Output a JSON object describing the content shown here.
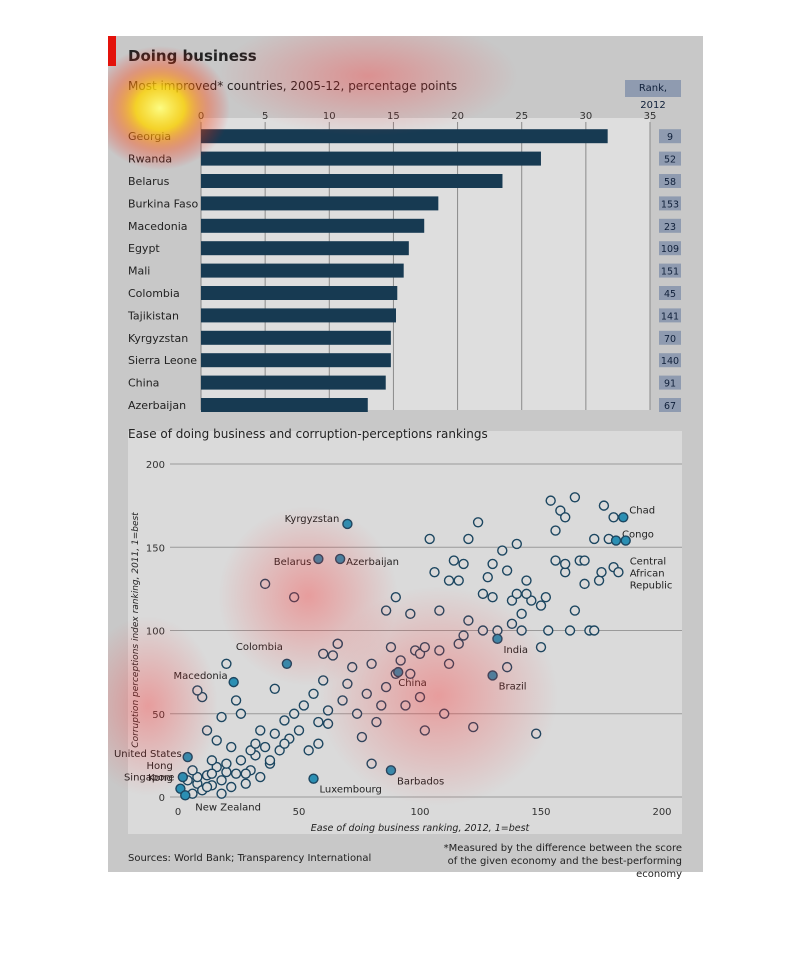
{
  "header": {
    "title": "Doing business",
    "bar_subtitle": "Most improved* countries, 2005-12, percentage points",
    "rank_header": "Rank, 2012"
  },
  "colors": {
    "accent": "#e3120b",
    "bar": "#173a52",
    "rank_box": "#8f9bb0",
    "point_highlight": "#2b8fb3",
    "point_plain_stroke": "#1c4660"
  },
  "chart_data": [
    {
      "type": "bar",
      "orientation": "horizontal",
      "title": "Most improved* countries, 2005-12, percentage points",
      "categories": [
        "Georgia",
        "Rwanda",
        "Belarus",
        "Burkina Faso",
        "Macedonia",
        "Egypt",
        "Mali",
        "Colombia",
        "Tajikistan",
        "Kyrgyzstan",
        "Sierra Leone",
        "China",
        "Azerbaijan"
      ],
      "values": [
        31.7,
        26.5,
        23.5,
        18.5,
        17.4,
        16.2,
        15.8,
        15.3,
        15.2,
        14.8,
        14.8,
        14.4,
        13.0
      ],
      "ranks_2012": [
        "9",
        "52",
        "58",
        "153",
        "23",
        "109",
        "151",
        "45",
        "141",
        "70",
        "140",
        "91",
        "67"
      ],
      "xlim": [
        0,
        35
      ],
      "xticks": [
        "0",
        "5",
        "10",
        "15",
        "20",
        "25",
        "30",
        "35"
      ],
      "grid": true
    },
    {
      "type": "scatter",
      "title": "Ease of doing business and corruption-perceptions rankings",
      "xlabel": "Ease of doing business ranking, 2012, 1=best",
      "ylabel": "Corruption perceptions index ranking, 2011, 1=best",
      "xlim": [
        0,
        200
      ],
      "ylim": [
        0,
        200
      ],
      "xticks": [
        "0",
        "50",
        "100",
        "150",
        "200"
      ],
      "yticks": [
        "0",
        "50",
        "100",
        "150",
        "200"
      ],
      "grid": true,
      "highlighted": [
        {
          "label": "Kyrgyzstan",
          "x": 70,
          "y": 164
        },
        {
          "label": "Belarus",
          "x": 58,
          "y": 143
        },
        {
          "label": "Azerbaijan",
          "x": 67,
          "y": 143
        },
        {
          "label": "Chad",
          "x": 184,
          "y": 168
        },
        {
          "label": "Congo",
          "x": 181,
          "y": 154
        },
        {
          "label": "Central African Republic",
          "x": 185,
          "y": 154
        },
        {
          "label": "Colombia",
          "x": 45,
          "y": 80
        },
        {
          "label": "Macedonia",
          "x": 23,
          "y": 69
        },
        {
          "label": "India",
          "x": 132,
          "y": 95
        },
        {
          "label": "China",
          "x": 91,
          "y": 75
        },
        {
          "label": "Brazil",
          "x": 130,
          "y": 73
        },
        {
          "label": "United States",
          "x": 4,
          "y": 24
        },
        {
          "label": "Hong Kong",
          "x": 2,
          "y": 12
        },
        {
          "label": "Singapore",
          "x": 1,
          "y": 5
        },
        {
          "label": "New Zealand",
          "x": 3,
          "y": 1
        },
        {
          "label": "Luxembourg",
          "x": 56,
          "y": 11
        },
        {
          "label": "Barbados",
          "x": 88,
          "y": 16
        }
      ],
      "others": [
        [
          6,
          2
        ],
        [
          8,
          8
        ],
        [
          10,
          4
        ],
        [
          12,
          13
        ],
        [
          14,
          7
        ],
        [
          16,
          18
        ],
        [
          18,
          10
        ],
        [
          20,
          15
        ],
        [
          22,
          6
        ],
        [
          24,
          14
        ],
        [
          26,
          22
        ],
        [
          28,
          8
        ],
        [
          30,
          16
        ],
        [
          32,
          25
        ],
        [
          34,
          12
        ],
        [
          36,
          30
        ],
        [
          38,
          20
        ],
        [
          40,
          38
        ],
        [
          42,
          28
        ],
        [
          44,
          46
        ],
        [
          46,
          35
        ],
        [
          48,
          50
        ],
        [
          50,
          40
        ],
        [
          52,
          55
        ],
        [
          54,
          28
        ],
        [
          56,
          62
        ],
        [
          58,
          45
        ],
        [
          60,
          70
        ],
        [
          62,
          52
        ],
        [
          64,
          85
        ],
        [
          66,
          92
        ],
        [
          68,
          58
        ],
        [
          70,
          68
        ],
        [
          72,
          78
        ],
        [
          74,
          50
        ],
        [
          76,
          36
        ],
        [
          78,
          62
        ],
        [
          80,
          80
        ],
        [
          82,
          45
        ],
        [
          84,
          55
        ],
        [
          86,
          66
        ],
        [
          88,
          90
        ],
        [
          90,
          74
        ],
        [
          92,
          82
        ],
        [
          94,
          55
        ],
        [
          96,
          110
        ],
        [
          98,
          88
        ],
        [
          100,
          60
        ],
        [
          102,
          40
        ],
        [
          104,
          155
        ],
        [
          106,
          135
        ],
        [
          108,
          112
        ],
        [
          110,
          50
        ],
        [
          112,
          80
        ],
        [
          114,
          142
        ],
        [
          116,
          130
        ],
        [
          118,
          97
        ],
        [
          120,
          155
        ],
        [
          122,
          42
        ],
        [
          124,
          165
        ],
        [
          126,
          100
        ],
        [
          128,
          132
        ],
        [
          130,
          120
        ],
        [
          132,
          100
        ],
        [
          134,
          148
        ],
        [
          136,
          78
        ],
        [
          138,
          118
        ],
        [
          140,
          152
        ],
        [
          142,
          100
        ],
        [
          144,
          130
        ],
        [
          146,
          118
        ],
        [
          148,
          38
        ],
        [
          150,
          90
        ],
        [
          152,
          120
        ],
        [
          154,
          178
        ],
        [
          156,
          142
        ],
        [
          158,
          172
        ],
        [
          160,
          168
        ],
        [
          162,
          100
        ],
        [
          164,
          180
        ],
        [
          166,
          142
        ],
        [
          168,
          128
        ],
        [
          170,
          100
        ],
        [
          172,
          155
        ],
        [
          174,
          130
        ],
        [
          176,
          175
        ],
        [
          178,
          155
        ],
        [
          180,
          168
        ],
        [
          20,
          80
        ],
        [
          18,
          48
        ],
        [
          16,
          34
        ],
        [
          12,
          40
        ],
        [
          10,
          60
        ],
        [
          8,
          64
        ],
        [
          24,
          58
        ],
        [
          26,
          50
        ],
        [
          30,
          28
        ],
        [
          34,
          40
        ],
        [
          38,
          22
        ],
        [
          40,
          65
        ],
        [
          14,
          22
        ],
        [
          22,
          30
        ],
        [
          28,
          14
        ],
        [
          32,
          32
        ],
        [
          44,
          32
        ],
        [
          48,
          120
        ],
        [
          36,
          128
        ],
        [
          60,
          86
        ],
        [
          66,
          92
        ],
        [
          86,
          112
        ],
        [
          90,
          120
        ],
        [
          118,
          140
        ],
        [
          126,
          122
        ],
        [
          130,
          140
        ],
        [
          136,
          136
        ],
        [
          140,
          122
        ],
        [
          144,
          122
        ],
        [
          150,
          115
        ],
        [
          153,
          100
        ],
        [
          156,
          160
        ],
        [
          160,
          135
        ],
        [
          164,
          112
        ],
        [
          168,
          142
        ],
        [
          172,
          100
        ],
        [
          175,
          135
        ],
        [
          12,
          6
        ],
        [
          18,
          2
        ],
        [
          8,
          12
        ],
        [
          6,
          16
        ],
        [
          14,
          14
        ],
        [
          20,
          20
        ],
        [
          4,
          10
        ],
        [
          58,
          32
        ],
        [
          62,
          44
        ],
        [
          80,
          20
        ],
        [
          96,
          74
        ],
        [
          100,
          86
        ],
        [
          102,
          90
        ],
        [
          108,
          88
        ],
        [
          112,
          130
        ],
        [
          116,
          92
        ],
        [
          120,
          106
        ],
        [
          138,
          104
        ],
        [
          142,
          110
        ],
        [
          160,
          140
        ],
        [
          180,
          138
        ],
        [
          182,
          135
        ]
      ]
    }
  ],
  "scatter_title": "Ease of doing business and corruption-perceptions rankings",
  "sources": "Sources: World Bank; Transparency International",
  "footnote": "*Measured by the difference between the score of the given economy and the best-performing economy"
}
